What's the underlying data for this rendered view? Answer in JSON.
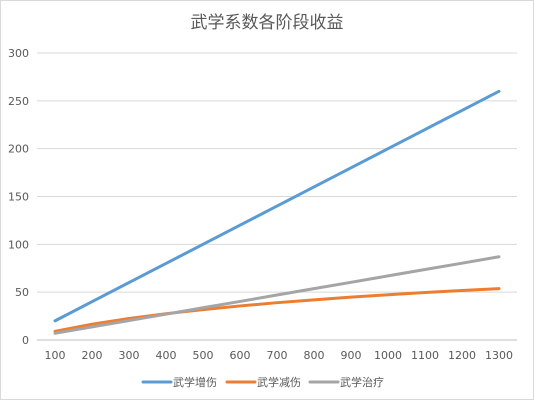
{
  "chart_data": {
    "type": "line",
    "title": "武学系数各阶段收益",
    "xlabel": "",
    "ylabel": "",
    "x": [
      100,
      200,
      300,
      400,
      500,
      600,
      700,
      800,
      900,
      1000,
      1100,
      1200,
      1300
    ],
    "x_tick_labels": [
      "100",
      "200",
      "300",
      "400",
      "500",
      "600",
      "700",
      "800",
      "900",
      "1000",
      "1100",
      "1200",
      "1300"
    ],
    "ylim": [
      0,
      300
    ],
    "y_ticks": [
      0,
      50,
      100,
      150,
      200,
      250,
      300
    ],
    "y_tick_labels": [
      "0",
      "50",
      "100",
      "150",
      "200",
      "250",
      "300"
    ],
    "grid": true,
    "legend_position": "bottom",
    "series": [
      {
        "name": "武学增伤",
        "color": "#5B9BD5",
        "values": [
          20,
          40,
          60,
          80,
          100,
          120,
          140,
          160,
          180,
          200,
          220,
          240,
          260
        ]
      },
      {
        "name": "武学减伤",
        "color": "#ED7D31",
        "values": [
          9,
          16.5,
          22.5,
          27.5,
          31.8,
          35.6,
          39,
          42,
          44.8,
          47.3,
          49.6,
          51.7,
          53.7
        ]
      },
      {
        "name": "武学治疗",
        "color": "#A5A5A5",
        "values": [
          7,
          13.7,
          20.3,
          27,
          33.7,
          40.3,
          47,
          53.7,
          60.3,
          67,
          73.7,
          80.3,
          87
        ]
      }
    ]
  }
}
